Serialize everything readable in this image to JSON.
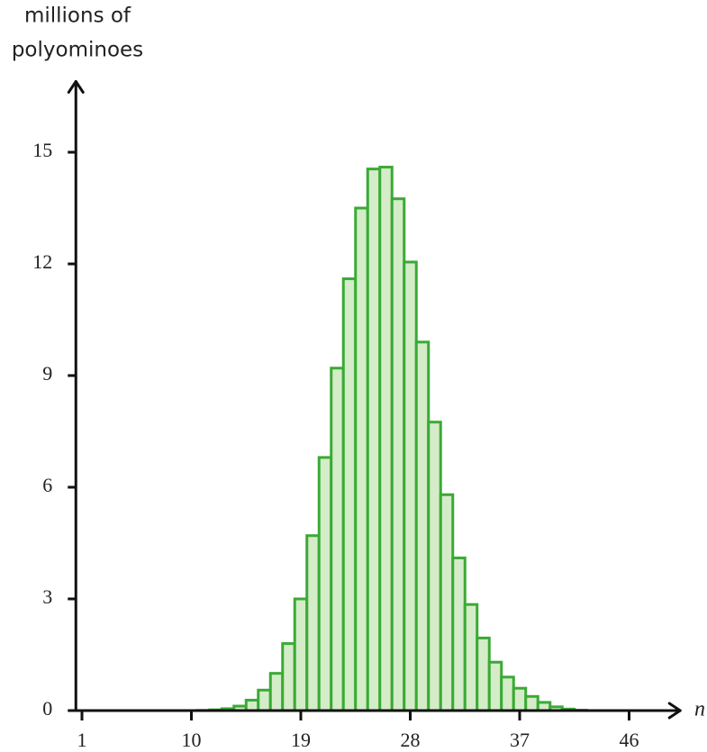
{
  "chart_data": {
    "type": "histogram",
    "ylabel_lines": [
      "millions of",
      "polyominoes"
    ],
    "xlabel": "n",
    "bins": [
      10.5,
      11.5,
      12.5,
      13.5,
      14.5,
      15.5,
      16.5,
      17.5,
      18.5,
      19.5,
      20.5,
      21.5,
      22.5,
      23.5,
      24.5,
      25.5,
      26.5,
      27.5,
      28.5,
      29.5,
      30.5,
      31.5,
      32.5,
      33.5,
      34.5,
      35.5,
      36.5,
      37.5,
      38.5,
      39.5,
      40.5,
      41.5,
      42.5
    ],
    "counts": [
      0.005,
      0.02,
      0.05,
      0.12,
      0.28,
      0.55,
      1.0,
      1.8,
      3.0,
      4.7,
      6.8,
      9.2,
      11.6,
      13.5,
      14.55,
      14.6,
      13.75,
      12.05,
      9.9,
      7.75,
      5.8,
      4.1,
      2.85,
      1.95,
      1.3,
      0.9,
      0.6,
      0.38,
      0.22,
      0.1,
      0.04,
      0.01
    ],
    "color": "#3aaa35",
    "fill": "#d4ecc8",
    "xlim": [
      0.5,
      50.2
    ],
    "ylim": [
      0,
      16.9
    ],
    "xticks": [
      1,
      10,
      19,
      28,
      37,
      46
    ],
    "yticks": [
      0,
      3,
      6,
      9,
      12,
      15
    ]
  }
}
